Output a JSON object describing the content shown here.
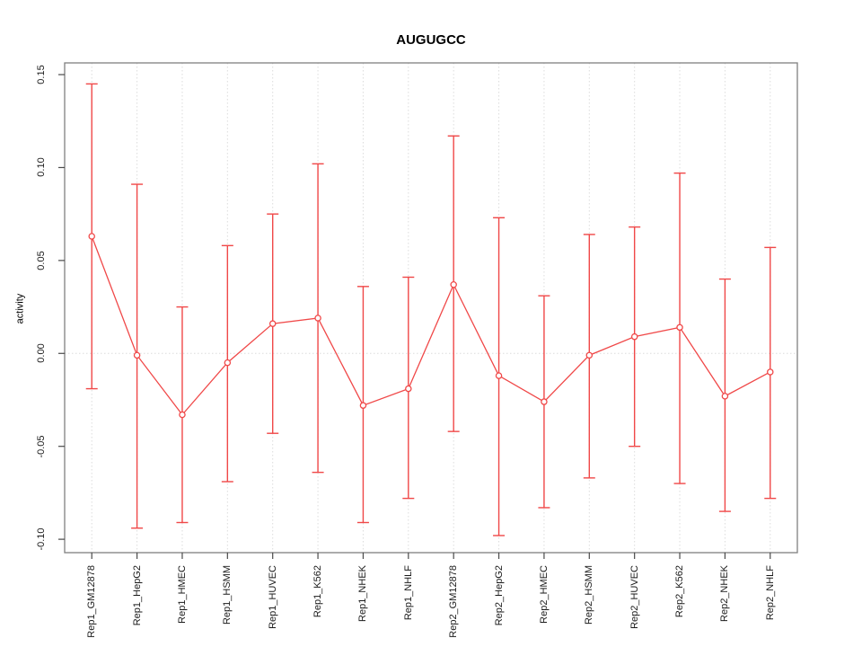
{
  "chart_data": {
    "type": "line",
    "title": "AUGUGCC",
    "xlabel": "",
    "ylabel": "activity",
    "legend_position": "none",
    "categories": [
      "Rep1_GM12878",
      "Rep1_HepG2",
      "Rep1_HMEC",
      "Rep1_HSMM",
      "Rep1_HUVEC",
      "Rep1_K562",
      "Rep1_NHEK",
      "Rep1_NHLF",
      "Rep2_GM12878",
      "Rep2_HepG2",
      "Rep2_HMEC",
      "Rep2_HSMM",
      "Rep2_HUVEC",
      "Rep2_K562",
      "Rep2_NHEK",
      "Rep2_NHLF"
    ],
    "series": [
      {
        "name": "activity",
        "marker": "open-circle",
        "values": [
          0.063,
          -0.001,
          -0.033,
          -0.005,
          0.016,
          0.019,
          -0.028,
          -0.019,
          0.037,
          -0.012,
          -0.026,
          -0.001,
          0.009,
          0.014,
          -0.023,
          -0.01
        ],
        "error_upper": [
          0.145,
          0.091,
          0.025,
          0.058,
          0.075,
          0.102,
          0.036,
          0.041,
          0.117,
          0.073,
          0.031,
          0.064,
          0.068,
          0.097,
          0.04,
          0.057
        ],
        "error_lower": [
          -0.019,
          -0.094,
          -0.091,
          -0.069,
          -0.043,
          -0.064,
          -0.091,
          -0.078,
          -0.042,
          -0.098,
          -0.083,
          -0.067,
          -0.05,
          -0.07,
          -0.085,
          -0.078
        ]
      }
    ],
    "y_ticks": [
      -0.1,
      -0.05,
      0.0,
      0.05,
      0.1,
      0.15
    ],
    "y_tick_labels": [
      "-0.10",
      "-0.05",
      "0.00",
      "0.05",
      "0.10",
      "0.15"
    ],
    "ylim": [
      -0.1072,
      0.1563
    ],
    "xlim": [
      0.4,
      16.6
    ],
    "grid": "vertical dotted line at each category; horizontal dotted line at y=0",
    "colors": {
      "series": "#f04848",
      "grid": "#dcdcdc",
      "frame": "#7f7f7f",
      "tick": "#4a4a4a",
      "text": "#000000",
      "background": "#ffffff"
    }
  }
}
